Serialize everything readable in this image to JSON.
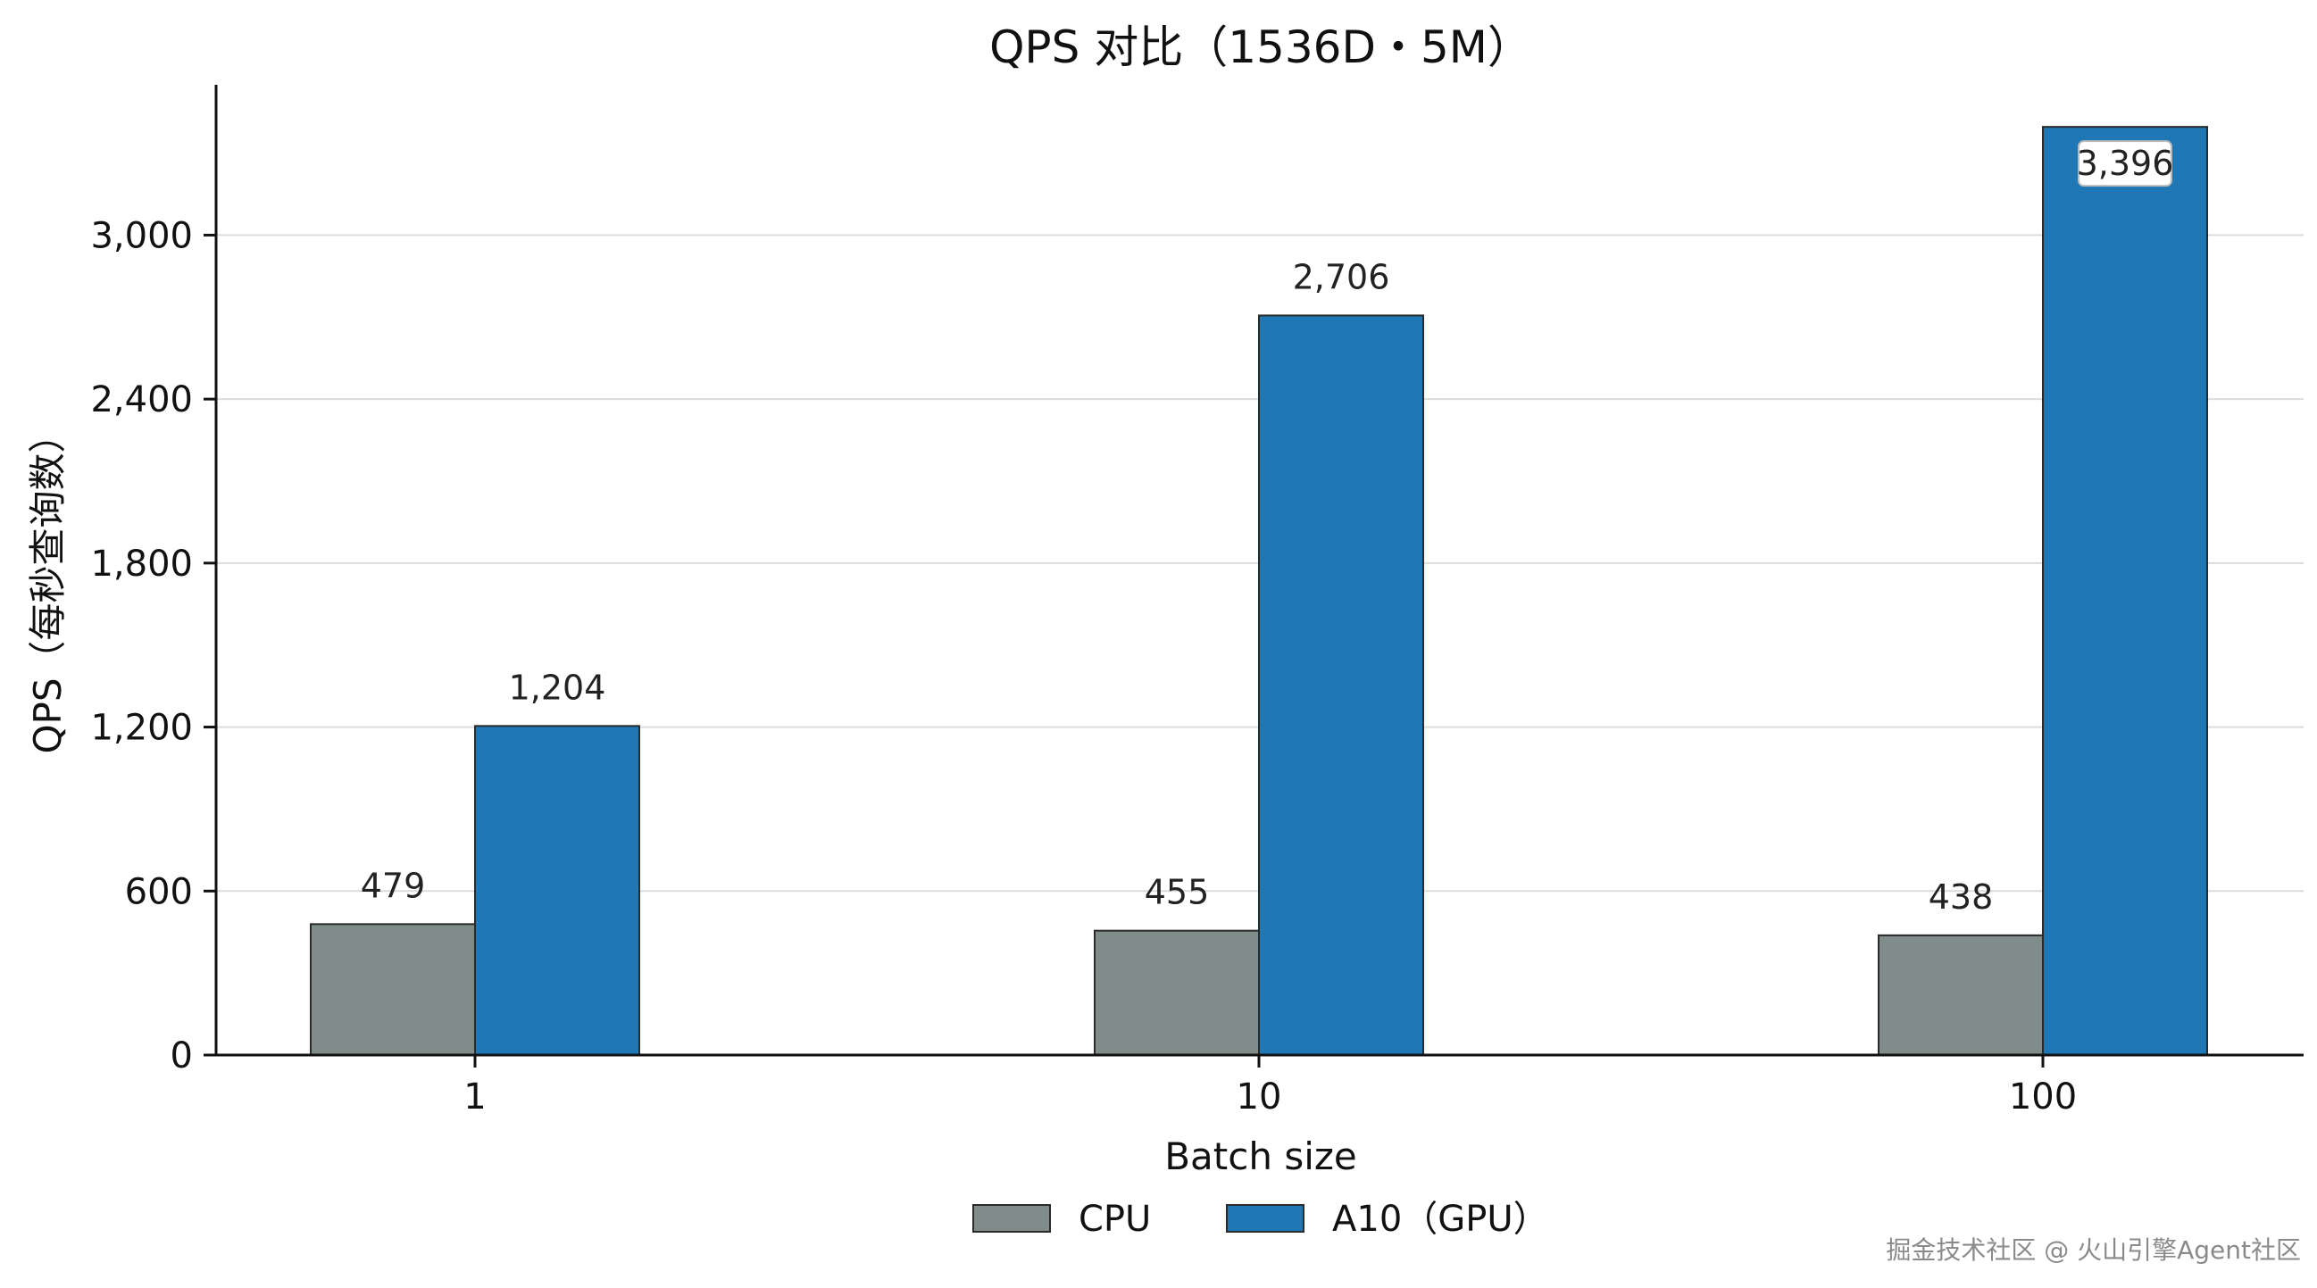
{
  "chart_data": {
    "type": "bar",
    "title": "QPS 对比（1536D・5M）",
    "xlabel": "Batch size",
    "ylabel": "QPS（每秒查询数）",
    "categories": [
      "1",
      "10",
      "100"
    ],
    "series": [
      {
        "name": "CPU",
        "color": "#7f8c8a",
        "values": [
          479,
          455,
          438
        ],
        "labels": [
          "479",
          "455",
          "438"
        ]
      },
      {
        "name": "A10（GPU）",
        "color": "#2077b5",
        "values": [
          1204,
          2706,
          3396
        ],
        "labels": [
          "1,204",
          "2,706",
          "3,396"
        ]
      }
    ],
    "ylim": [
      0,
      3550
    ],
    "yticks": [
      0,
      600,
      1200,
      1800,
      2400,
      3000
    ],
    "ytick_labels": [
      "0",
      "600",
      "1,200",
      "1,800",
      "2,400",
      "3,000"
    ],
    "grid": "horizontal",
    "legend_position": "bottom-center"
  },
  "watermark": "掘金技术社区 @ 火山引擎Agent社区"
}
